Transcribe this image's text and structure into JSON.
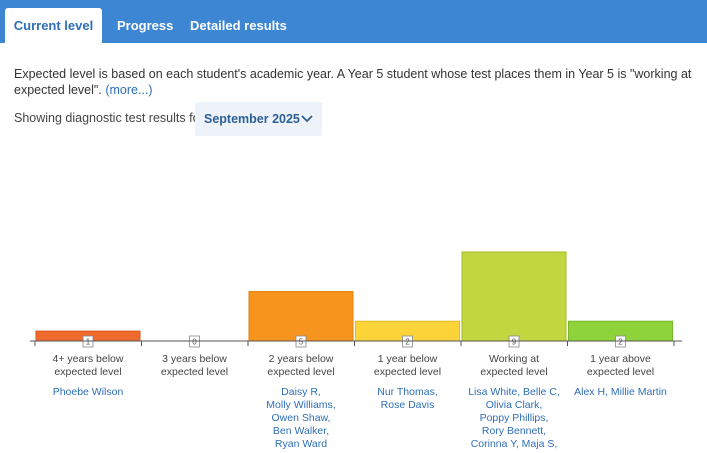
{
  "tabs": [
    {
      "label": "Current level",
      "active": true
    },
    {
      "label": "Progress",
      "active": false
    },
    {
      "label": "Detailed results",
      "active": false
    }
  ],
  "description": {
    "text": "Expected level is based on each student's academic year. A Year 5 student whose test places them in Year 5 is \"working at expected level\".",
    "more_link": "(more...)"
  },
  "filter": {
    "label": "Showing diagnostic test results for",
    "selected": "September 2025"
  },
  "colors": {
    "accent": "#3d86d4",
    "link": "#2f6fb7",
    "axis": "#555555"
  },
  "chart_data": {
    "type": "bar",
    "categories": [
      "4+ years below expected level",
      "3 years below expected level",
      "2 years below expected level",
      "1 year below expected level",
      "Working at expected level",
      "1 year above expected level"
    ],
    "category_lines": [
      [
        "4+ years below",
        "expected level"
      ],
      [
        "3 years below",
        "expected level"
      ],
      [
        "2 years below",
        "expected level"
      ],
      [
        "1 year below",
        "expected level"
      ],
      [
        "Working at",
        "expected level"
      ],
      [
        "1 year above",
        "expected level"
      ]
    ],
    "values": [
      1,
      0,
      5,
      2,
      9,
      2
    ],
    "value_labels": [
      "1",
      "0",
      "5",
      "2",
      "9",
      "2"
    ],
    "colors": [
      "#ee6b2d",
      "#cccccc",
      "#f7941d",
      "#fdd33a",
      "#c2d63f",
      "#8fd33a"
    ],
    "border_colors": [
      "#d9541a",
      "#aaaaaa",
      "#e27f0a",
      "#e8b923",
      "#a6bb28",
      "#72b82a"
    ],
    "students": [
      [
        "Phoebe Wilson"
      ],
      [],
      [
        "Daisy R,",
        "Molly Williams,",
        "Owen Shaw,",
        "Ben Walker,",
        "Ryan Ward"
      ],
      [
        "Nur Thomas,",
        "Rose Davis"
      ],
      [
        "Lisa White, Belle C,",
        "Olivia Clark,",
        "Poppy Phillips,",
        "Rory Bennett,",
        "Corinna Y, Maja S,"
      ],
      [
        "Alex H, Millie Martin"
      ]
    ],
    "ylim": [
      0,
      9
    ]
  }
}
